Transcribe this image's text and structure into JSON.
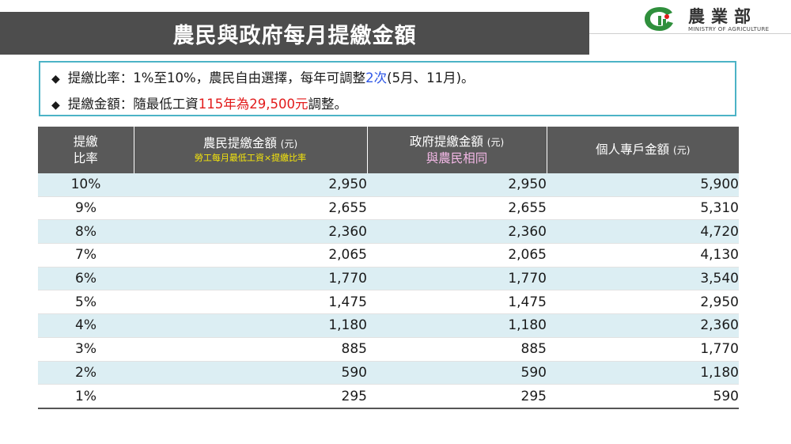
{
  "title": "農民與政府每月提繳金額",
  "logo": {
    "cn": "農業部",
    "en": "MINISTRY OF AGRICULTURE"
  },
  "info": {
    "line1": {
      "prefix": "提繳比率：1%至10%，農民自由選擇，每年可調整",
      "highlight": "2次",
      "suffix": "(5月、11月)。"
    },
    "line2": {
      "prefix": "提繳金額：隨最低工資",
      "highlight": "115年為29,500元",
      "suffix": "調整。"
    }
  },
  "table": {
    "headers": {
      "rate_line1": "提繳",
      "rate_line2": "比率",
      "farmer": "農民提繳金額",
      "farmer_unit": "(元)",
      "farmer_sub": "勞工每月最低工資×提繳比率",
      "gov": "政府提繳金額",
      "gov_unit": "(元)",
      "gov_sub": "與農民相同",
      "acct": "個人專戶金額",
      "acct_unit": "(元)"
    },
    "rows": [
      {
        "rate": "10%",
        "farmer": "2,950",
        "gov": "2,950",
        "acct": "5,900"
      },
      {
        "rate": "9%",
        "farmer": "2,655",
        "gov": "2,655",
        "acct": "5,310"
      },
      {
        "rate": "8%",
        "farmer": "2,360",
        "gov": "2,360",
        "acct": "4,720"
      },
      {
        "rate": "7%",
        "farmer": "2,065",
        "gov": "2,065",
        "acct": "4,130"
      },
      {
        "rate": "6%",
        "farmer": "1,770",
        "gov": "1,770",
        "acct": "3,540"
      },
      {
        "rate": "5%",
        "farmer": "1,475",
        "gov": "1,475",
        "acct": "2,950"
      },
      {
        "rate": "4%",
        "farmer": "1,180",
        "gov": "1,180",
        "acct": "2,360"
      },
      {
        "rate": "3%",
        "farmer": "885",
        "gov": "885",
        "acct": "1,770"
      },
      {
        "rate": "2%",
        "farmer": "590",
        "gov": "590",
        "acct": "1,180"
      },
      {
        "rate": "1%",
        "farmer": "295",
        "gov": "295",
        "acct": "590"
      }
    ]
  },
  "colors": {
    "title_bg": "#4d4d4d",
    "header_bg": "#595959",
    "row_alt": "#dceef3",
    "box_border": "#4cb3c6",
    "accent_blue": "#2e57e6",
    "accent_red": "#e21b1b",
    "header_yellow": "#f5e50b",
    "header_pink": "#f3b8e6",
    "logo_green": "#2f8f3c"
  }
}
